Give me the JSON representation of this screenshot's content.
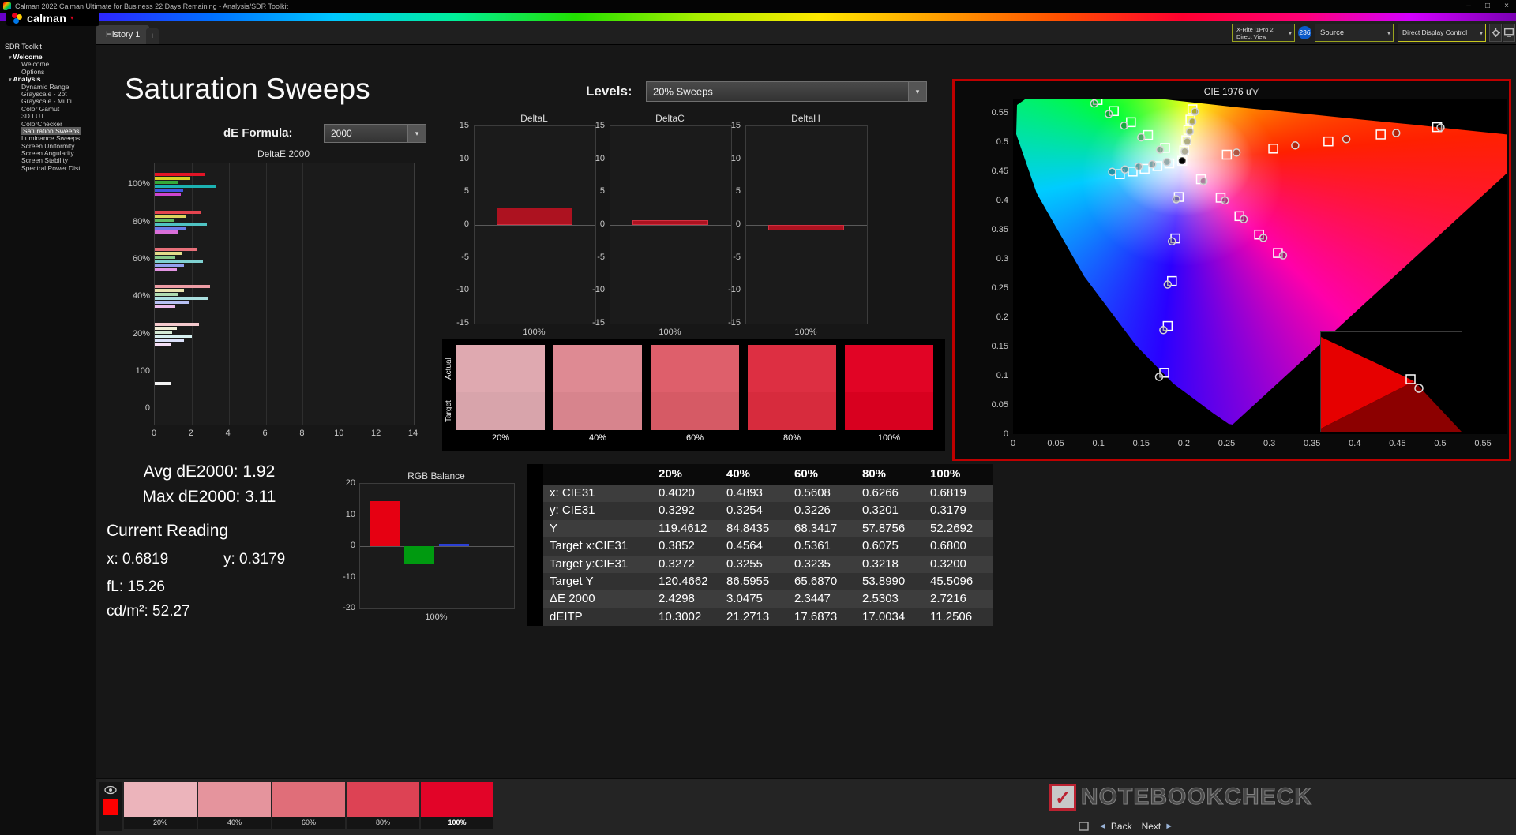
{
  "titlebar": {
    "title": "Calman 2022 Calman Ultimate for Business 22 Days Remaining  - Analysis/SDR Toolkit"
  },
  "icons": {
    "minimize": "–",
    "maximize": "□",
    "close": "×",
    "caret_down": "▾",
    "collapse_left": "◄",
    "round_dot": "•",
    "back_arrow": "◄",
    "next_arrow": "►",
    "check": "✓",
    "tab_add": "+"
  },
  "logo": {
    "text": "calman"
  },
  "topbar": {
    "tab": "History 1",
    "meter_line1": "X-Rite i1Pro 2",
    "meter_line2": "Direct View",
    "badge": "236",
    "source": "Source",
    "display_control": "Direct Display Control"
  },
  "sidebar": {
    "header": "SDR Toolkit",
    "tree": [
      {
        "label": "Welcome",
        "level": 0
      },
      {
        "label": "Welcome",
        "level": 1
      },
      {
        "label": "Options",
        "level": 1
      },
      {
        "label": "Analysis",
        "level": 0
      },
      {
        "label": "Dynamic Range",
        "level": 1
      },
      {
        "label": "Grayscale - 2pt",
        "level": 1
      },
      {
        "label": "Grayscale - Multi",
        "level": 1
      },
      {
        "label": "Color Gamut",
        "level": 1
      },
      {
        "label": "3D LUT",
        "level": 1
      },
      {
        "label": "ColorChecker",
        "level": 1
      },
      {
        "label": "Saturation Sweeps",
        "level": 1,
        "selected": true
      },
      {
        "label": "Luminance Sweeps",
        "level": 1
      },
      {
        "label": "Screen Uniformity",
        "level": 1
      },
      {
        "label": "Screen Angularity",
        "level": 1
      },
      {
        "label": "Screen Stability",
        "level": 1
      },
      {
        "label": "Spectral Power Dist.",
        "level": 1
      }
    ]
  },
  "page": {
    "title": "Saturation Sweeps",
    "levels_label": "Levels:",
    "levels_value": "20% Sweeps",
    "de_formula_label": "dE Formula:",
    "de_formula_value": "2000"
  },
  "stats": {
    "avg": "Avg dE2000: 1.92",
    "max": "Max dE2000: 3.11",
    "current_heading": "Current Reading",
    "x": "x: 0.6819",
    "y": "y: 0.3179",
    "fl": "fL: 15.26",
    "cdm2": "cd/m²: 52.27"
  },
  "table": {
    "columns": [
      "20%",
      "40%",
      "60%",
      "80%",
      "100%"
    ],
    "rows": [
      {
        "label": "x: CIE31",
        "values": [
          "0.4020",
          "0.4893",
          "0.5608",
          "0.6266",
          "0.6819"
        ]
      },
      {
        "label": "y: CIE31",
        "values": [
          "0.3292",
          "0.3254",
          "0.3226",
          "0.3201",
          "0.3179"
        ]
      },
      {
        "label": "Y",
        "values": [
          "119.4612",
          "84.8435",
          "68.3417",
          "57.8756",
          "52.2692"
        ]
      },
      {
        "label": "Target x:CIE31",
        "values": [
          "0.3852",
          "0.4564",
          "0.5361",
          "0.6075",
          "0.6800"
        ]
      },
      {
        "label": "Target y:CIE31",
        "values": [
          "0.3272",
          "0.3255",
          "0.3235",
          "0.3218",
          "0.3200"
        ]
      },
      {
        "label": "Target Y",
        "values": [
          "120.4662",
          "86.5955",
          "65.6870",
          "53.8990",
          "45.5096"
        ]
      },
      {
        "label": "ΔE 2000",
        "values": [
          "2.4298",
          "3.0475",
          "2.3447",
          "2.5303",
          "2.7216"
        ]
      },
      {
        "label": "dEITP",
        "values": [
          "10.3002",
          "21.2713",
          "17.6873",
          "17.0034",
          "11.2506"
        ]
      }
    ]
  },
  "chart_data": [
    {
      "id": "deltaE2000",
      "type": "bar",
      "orientation": "horizontal",
      "title": "DeltaE 2000",
      "xlim": [
        0,
        14
      ],
      "xticks": [
        0,
        2,
        4,
        6,
        8,
        10,
        12,
        14
      ],
      "row_labels": [
        "100%",
        "80%",
        "60%",
        "40%",
        "20%",
        "100",
        "0"
      ],
      "groups": [
        {
          "label": "100%",
          "bars": [
            {
              "name": "red",
              "color": "#e31426",
              "value": 2.7
            },
            {
              "name": "yellow",
              "color": "#d8cf25",
              "value": 1.9
            },
            {
              "name": "green",
              "color": "#35a93a",
              "value": 1.25
            },
            {
              "name": "cyan",
              "color": "#1cb2b2",
              "value": 3.3
            },
            {
              "name": "blue",
              "color": "#4156e0",
              "value": 1.55
            },
            {
              "name": "magenta",
              "color": "#cf46cf",
              "value": 1.4
            }
          ]
        },
        {
          "label": "80%",
          "bars": [
            {
              "name": "red",
              "color": "#e4444f",
              "value": 2.5
            },
            {
              "name": "yellow",
              "color": "#dcd45e",
              "value": 1.65
            },
            {
              "name": "green",
              "color": "#5fba62",
              "value": 1.05
            },
            {
              "name": "cyan",
              "color": "#4fc3c3",
              "value": 2.8
            },
            {
              "name": "blue",
              "color": "#6b7de8",
              "value": 1.7
            },
            {
              "name": "magenta",
              "color": "#d96fd9",
              "value": 1.3
            }
          ]
        },
        {
          "label": "60%",
          "bars": [
            {
              "name": "red",
              "color": "#e8707a",
              "value": 2.3
            },
            {
              "name": "yellow",
              "color": "#e2dc8a",
              "value": 1.45
            },
            {
              "name": "green",
              "color": "#87c98a",
              "value": 1.1
            },
            {
              "name": "cyan",
              "color": "#7fd1d1",
              "value": 2.6
            },
            {
              "name": "blue",
              "color": "#93a1ef",
              "value": 1.6
            },
            {
              "name": "magenta",
              "color": "#e295e2",
              "value": 1.2
            }
          ]
        },
        {
          "label": "40%",
          "bars": [
            {
              "name": "red",
              "color": "#ee9da5",
              "value": 3.0
            },
            {
              "name": "yellow",
              "color": "#e9e5b0",
              "value": 1.6
            },
            {
              "name": "green",
              "color": "#aedbaf",
              "value": 1.3
            },
            {
              "name": "cyan",
              "color": "#abe0e0",
              "value": 2.9
            },
            {
              "name": "blue",
              "color": "#b7c0f4",
              "value": 1.85
            },
            {
              "name": "magenta",
              "color": "#ecbcec",
              "value": 1.1
            }
          ]
        },
        {
          "label": "20%",
          "bars": [
            {
              "name": "red",
              "color": "#f4c9cd",
              "value": 2.4
            },
            {
              "name": "yellow",
              "color": "#f1efd8",
              "value": 1.2
            },
            {
              "name": "green",
              "color": "#d4ead5",
              "value": 0.95
            },
            {
              "name": "cyan",
              "color": "#d6efef",
              "value": 2.0
            },
            {
              "name": "blue",
              "color": "#dce1fa",
              "value": 1.6
            },
            {
              "name": "magenta",
              "color": "#f5dff5",
              "value": 0.85
            }
          ]
        },
        {
          "label": "100",
          "bars": [
            {
              "name": "white",
              "color": "#f2f2f2",
              "value": 0.85
            }
          ]
        }
      ]
    },
    {
      "id": "deltaL",
      "type": "bar",
      "title": "DeltaL",
      "ylim": [
        -15,
        15
      ],
      "yticks": [
        15,
        10,
        5,
        0,
        -5,
        -10,
        -15
      ],
      "categories": [
        "100%"
      ],
      "values": [
        2.6
      ],
      "color": "#ad1220"
    },
    {
      "id": "deltaC",
      "type": "bar",
      "title": "DeltaC",
      "ylim": [
        -15,
        15
      ],
      "yticks": [
        15,
        10,
        5,
        0,
        -5,
        -10,
        -15
      ],
      "categories": [
        "100%"
      ],
      "values": [
        0.7
      ],
      "color": "#ad1220"
    },
    {
      "id": "deltaH",
      "type": "bar",
      "title": "DeltaH",
      "ylim": [
        -15,
        15
      ],
      "yticks": [
        15,
        10,
        5,
        0,
        -5,
        -10,
        -15
      ],
      "categories": [
        "100%"
      ],
      "values": [
        -0.85
      ],
      "color": "#ad1220"
    },
    {
      "id": "rgbBalance",
      "type": "bar",
      "title": "RGB Balance",
      "ylim": [
        -20,
        20
      ],
      "yticks": [
        20,
        10,
        0,
        -10,
        -20
      ],
      "categories": [
        "100%"
      ],
      "series": [
        {
          "name": "red",
          "color": "#e60012",
          "value": 14.4
        },
        {
          "name": "green",
          "color": "#009a10",
          "value": -5.8
        },
        {
          "name": "blue",
          "color": "#2b3fd4",
          "value": 0.7
        }
      ]
    },
    {
      "id": "cie1976",
      "type": "scatter",
      "title": "CIE 1976 u'v'",
      "xlim": [
        0,
        0.58
      ],
      "ylim": [
        0,
        0.575
      ],
      "xticks": [
        "0",
        "0.05",
        "0.1",
        "0.15",
        "0.2",
        "0.25",
        "0.3",
        "0.35",
        "0.4",
        "0.45",
        "0.5",
        "0.55"
      ],
      "yticks": [
        "0.55",
        "0.5",
        "0.45",
        "0.4",
        "0.35",
        "0.3",
        "0.25",
        "0.2",
        "0.15",
        "0.1",
        "0.05",
        "0"
      ],
      "white_point": [
        0.198,
        0.468
      ],
      "sweeps": [
        {
          "name": "red",
          "target": [
            [
              0.2503,
              0.4784
            ],
            [
              0.3046,
              0.4888
            ],
            [
              0.3691,
              0.5011
            ],
            [
              0.4304,
              0.5129
            ],
            [
              0.4964,
              0.5255
            ]
          ],
          "measured": [
            [
              0.2616,
              0.482
            ],
            [
              0.3303,
              0.4942
            ],
            [
              0.3901,
              0.505
            ],
            [
              0.4485,
              0.5155
            ],
            [
              0.5004,
              0.5249
            ]
          ]
        },
        {
          "name": "green",
          "target": [
            [
              0.178,
              0.49
            ],
            [
              0.158,
              0.512
            ],
            [
              0.138,
              0.534
            ],
            [
              0.118,
              0.553
            ],
            [
              0.099,
              0.572
            ]
          ],
          "measured": [
            [
              0.172,
              0.487
            ],
            [
              0.15,
              0.508
            ],
            [
              0.13,
              0.528
            ],
            [
              0.112,
              0.548
            ],
            [
              0.095,
              0.566
            ]
          ]
        },
        {
          "name": "blue",
          "target": [
            [
              0.194,
              0.406
            ],
            [
              0.19,
              0.335
            ],
            [
              0.186,
              0.262
            ],
            [
              0.181,
              0.185
            ],
            [
              0.177,
              0.105
            ]
          ],
          "measured": [
            [
              0.191,
              0.402
            ],
            [
              0.186,
              0.33
            ],
            [
              0.181,
              0.256
            ],
            [
              0.176,
              0.178
            ],
            [
              0.171,
              0.098
            ]
          ]
        },
        {
          "name": "cyan",
          "target": [
            [
              0.183,
              0.4634
            ],
            [
              0.169,
              0.4588
            ],
            [
              0.154,
              0.4542
            ],
            [
              0.14,
              0.4496
            ],
            [
              0.125,
              0.445
            ]
          ],
          "measured": [
            [
              0.18,
              0.466
            ],
            [
              0.163,
              0.462
            ],
            [
              0.147,
              0.458
            ],
            [
              0.131,
              0.453
            ],
            [
              0.116,
              0.449
            ]
          ]
        },
        {
          "name": "magenta",
          "target": [
            [
              0.22,
              0.4364
            ],
            [
              0.243,
              0.4048
            ],
            [
              0.265,
              0.3732
            ],
            [
              0.288,
              0.3416
            ],
            [
              0.31,
              0.31
            ]
          ],
          "measured": [
            [
              0.223,
              0.433
            ],
            [
              0.248,
              0.4
            ],
            [
              0.27,
              0.368
            ],
            [
              0.293,
              0.336
            ],
            [
              0.316,
              0.306
            ]
          ]
        },
        {
          "name": "yellow",
          "target": [
            [
              0.2004,
              0.4856
            ],
            [
              0.2028,
              0.5032
            ],
            [
              0.2052,
              0.5208
            ],
            [
              0.2076,
              0.5384
            ],
            [
              0.21,
              0.556
            ]
          ],
          "measured": [
            [
              0.201,
              0.484
            ],
            [
              0.204,
              0.501
            ],
            [
              0.207,
              0.518
            ],
            [
              0.21,
              0.535
            ],
            [
              0.213,
              0.552
            ]
          ]
        }
      ]
    },
    {
      "id": "saturationPatches",
      "type": "swatch-compare",
      "row_labels": [
        "Actual",
        "Target"
      ],
      "columns": [
        "20%",
        "40%",
        "60%",
        "80%",
        "100%"
      ],
      "actual": [
        "#dfa9b0",
        "#de8a93",
        "#de5f6b",
        "#dd2f42",
        "#e10425"
      ],
      "target": [
        "#d8a4ab",
        "#d7848d",
        "#d65a65",
        "#d72b3d",
        "#d8001f"
      ]
    }
  ],
  "bottombar": {
    "active_color": "#fe0000",
    "swatches": [
      {
        "label": "20%",
        "color": "#ecb4bb"
      },
      {
        "label": "40%",
        "color": "#e5949d"
      },
      {
        "label": "60%",
        "color": "#e06e79"
      },
      {
        "label": "80%",
        "color": "#dd4254"
      },
      {
        "label": "100%",
        "color": "#e20428"
      }
    ]
  },
  "watermark": {
    "text": "NOTEBOOKCHECK"
  },
  "nav": {
    "back": "Back",
    "next": "Next"
  }
}
